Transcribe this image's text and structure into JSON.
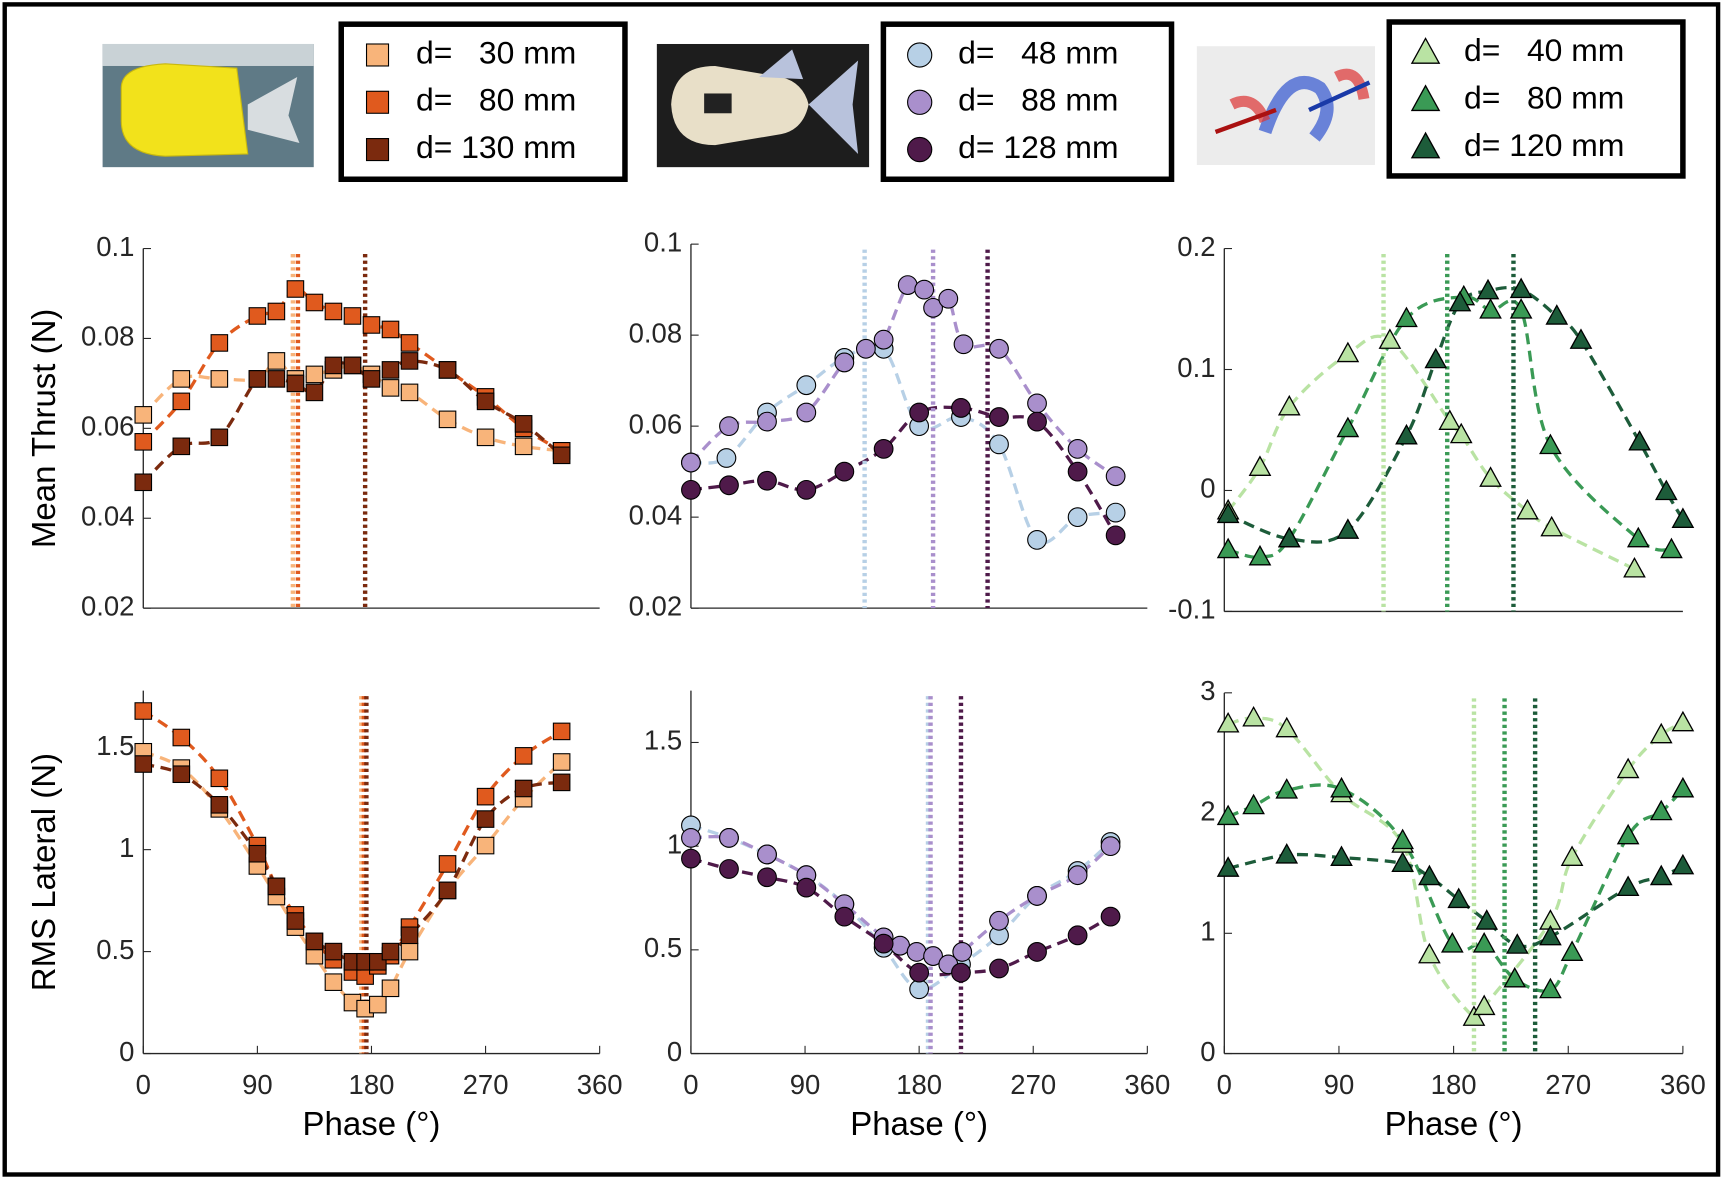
{
  "chart_data": [
    {
      "type": "scatter",
      "marker": "square",
      "xlim": [
        0,
        360
      ],
      "ylim": [
        0.02,
        0.1
      ],
      "yticks": [
        0.02,
        0.04,
        0.06,
        0.08,
        0.1
      ],
      "ylabel": "Mean Thrust (N)",
      "series": [
        {
          "name": "d=   30 mm",
          "color": "#f8b47a",
          "x": [
            0,
            30,
            60,
            90,
            105,
            120,
            135,
            150,
            165,
            180,
            195,
            210,
            240,
            270,
            300,
            330
          ],
          "values": [
            0.063,
            0.071,
            0.071,
            0.071,
            0.075,
            0.071,
            0.072,
            0.073,
            0.074,
            0.072,
            0.069,
            0.068,
            0.062,
            0.058,
            0.056,
            0.055
          ]
        },
        {
          "name": "d=   80 mm",
          "color": "#e05a1e",
          "x": [
            0,
            30,
            60,
            90,
            105,
            120,
            135,
            150,
            165,
            180,
            195,
            210,
            240,
            270,
            300,
            330
          ],
          "values": [
            0.057,
            0.066,
            0.079,
            0.085,
            0.086,
            0.091,
            0.088,
            0.086,
            0.085,
            0.083,
            0.082,
            0.079,
            0.073,
            0.067,
            0.06,
            0.055
          ]
        },
        {
          "name": "d= 130 mm",
          "color": "#7b2a0e",
          "x": [
            0,
            30,
            60,
            90,
            105,
            120,
            135,
            150,
            165,
            180,
            195,
            210,
            240,
            270,
            300,
            330
          ],
          "values": [
            0.048,
            0.056,
            0.058,
            0.071,
            0.071,
            0.07,
            0.068,
            0.074,
            0.074,
            0.071,
            0.073,
            0.075,
            0.073,
            0.066,
            0.061,
            0.054
          ]
        }
      ],
      "vlines": [
        {
          "x": 118,
          "color": "#f8b47a"
        },
        {
          "x": 122,
          "color": "#e05a1e"
        },
        {
          "x": 175,
          "color": "#7b2a0e"
        }
      ]
    },
    {
      "type": "scatter",
      "marker": "square",
      "xlim": [
        0,
        360
      ],
      "ylim": [
        0,
        1.78
      ],
      "xticks": [
        0,
        90,
        180,
        270,
        360
      ],
      "yticks": [
        0,
        0.5,
        1,
        1.5
      ],
      "xlabel": "Phase (°)",
      "ylabel": "RMS Lateral (N)",
      "series": [
        {
          "color": "#f8b47a",
          "x": [
            0,
            30,
            60,
            90,
            105,
            120,
            135,
            150,
            165,
            175,
            185,
            195,
            210,
            240,
            270,
            300,
            330
          ],
          "values": [
            1.48,
            1.4,
            1.2,
            0.92,
            0.77,
            0.62,
            0.48,
            0.35,
            0.25,
            0.22,
            0.24,
            0.32,
            0.5,
            0.8,
            1.02,
            1.25,
            1.43
          ]
        },
        {
          "color": "#e05a1e",
          "x": [
            0,
            30,
            60,
            90,
            105,
            120,
            135,
            150,
            165,
            175,
            185,
            195,
            210,
            240,
            270,
            300,
            330
          ],
          "values": [
            1.68,
            1.55,
            1.35,
            1.02,
            0.82,
            0.68,
            0.55,
            0.46,
            0.4,
            0.38,
            0.43,
            0.48,
            0.62,
            0.93,
            1.26,
            1.46,
            1.58
          ]
        },
        {
          "color": "#7b2a0e",
          "x": [
            0,
            30,
            60,
            90,
            105,
            120,
            135,
            150,
            165,
            175,
            185,
            195,
            210,
            240,
            270,
            300,
            330
          ],
          "values": [
            1.42,
            1.37,
            1.22,
            0.98,
            0.82,
            0.65,
            0.55,
            0.5,
            0.45,
            0.45,
            0.45,
            0.5,
            0.58,
            0.8,
            1.15,
            1.3,
            1.33
          ]
        }
      ],
      "vlines": [
        {
          "x": 172,
          "color": "#f8b47a"
        },
        {
          "x": 174,
          "color": "#e05a1e"
        },
        {
          "x": 176,
          "color": "#7b2a0e"
        }
      ]
    },
    {
      "type": "scatter",
      "marker": "circle",
      "xlim": [
        0,
        360
      ],
      "ylim": [
        0.02,
        0.1
      ],
      "yticks": [
        0.02,
        0.04,
        0.06,
        0.08,
        0.1
      ],
      "series": [
        {
          "name": "d=   48 mm",
          "color": "#b7d0e6",
          "x": [
            0,
            28,
            60,
            91,
            121,
            152,
            180,
            213,
            243,
            273,
            305,
            335
          ],
          "values": [
            0.052,
            0.053,
            0.063,
            0.069,
            0.075,
            0.077,
            0.06,
            0.062,
            0.056,
            0.035,
            0.04,
            0.041
          ]
        },
        {
          "name": "d=   88 mm",
          "color": "#a98fcc",
          "x": [
            0,
            30,
            60,
            91,
            121,
            138,
            152,
            171,
            184,
            191,
            203,
            215,
            243,
            273,
            305,
            335
          ],
          "values": [
            0.052,
            0.06,
            0.061,
            0.063,
            0.074,
            0.077,
            0.079,
            0.091,
            0.09,
            0.086,
            0.088,
            0.078,
            0.077,
            0.065,
            0.055,
            0.049
          ]
        },
        {
          "name": "d= 128 mm",
          "color": "#4f1a4a",
          "x": [
            0,
            30,
            60,
            91,
            121,
            152,
            180,
            213,
            243,
            273,
            305,
            335
          ],
          "values": [
            0.046,
            0.047,
            0.048,
            0.046,
            0.05,
            0.055,
            0.063,
            0.064,
            0.062,
            0.061,
            0.05,
            0.036
          ]
        }
      ],
      "vlines": [
        {
          "x": 137,
          "color": "#b7d0e6"
        },
        {
          "x": 191,
          "color": "#a98fcc"
        },
        {
          "x": 234,
          "color": "#4f1a4a"
        }
      ]
    },
    {
      "type": "scatter",
      "marker": "circle",
      "xlim": [
        0,
        360
      ],
      "ylim": [
        0,
        1.75
      ],
      "xticks": [
        0,
        90,
        180,
        270,
        360
      ],
      "yticks": [
        0,
        0.5,
        1,
        1.5
      ],
      "xlabel": "Phase (°)",
      "series": [
        {
          "color": "#b7d0e6",
          "x": [
            0,
            30,
            60,
            91,
            121,
            152,
            180,
            213,
            243,
            273,
            305,
            331
          ],
          "values": [
            1.1,
            1.04,
            0.96,
            0.86,
            0.72,
            0.51,
            0.31,
            0.43,
            0.57,
            0.76,
            0.88,
            1.02
          ]
        },
        {
          "color": "#a98fcc",
          "x": [
            0,
            30,
            60,
            91,
            121,
            152,
            165,
            178,
            191,
            203,
            214,
            243,
            273,
            305,
            331
          ],
          "values": [
            1.04,
            1.04,
            0.96,
            0.86,
            0.72,
            0.56,
            0.52,
            0.49,
            0.47,
            0.43,
            0.49,
            0.64,
            0.76,
            0.86,
            1.0
          ]
        },
        {
          "color": "#4f1a4a",
          "x": [
            0,
            30,
            60,
            91,
            121,
            152,
            180,
            213,
            243,
            273,
            305,
            331
          ],
          "values": [
            0.94,
            0.89,
            0.85,
            0.8,
            0.66,
            0.53,
            0.39,
            0.39,
            0.41,
            0.49,
            0.57,
            0.66
          ]
        }
      ],
      "vlines": [
        {
          "x": 187,
          "color": "#b7d0e6"
        },
        {
          "x": 189,
          "color": "#a98fcc"
        },
        {
          "x": 213,
          "color": "#4f1a4a"
        }
      ]
    },
    {
      "type": "scatter",
      "marker": "triangle",
      "xlim": [
        0,
        360
      ],
      "ylim": [
        -0.1,
        0.2
      ],
      "yticks": [
        -0.1,
        0,
        0.1,
        0.2
      ],
      "series": [
        {
          "name": "d=   40 mm",
          "color": "#b9e3a3",
          "x": [
            3,
            28,
            51,
            97,
            130,
            177,
            186,
            209,
            238,
            257,
            322
          ],
          "values": [
            -0.017,
            0.019,
            0.069,
            0.113,
            0.124,
            0.057,
            0.046,
            0.01,
            -0.017,
            -0.031,
            -0.065
          ]
        },
        {
          "name": "d=   80 mm",
          "color": "#3a9a55",
          "x": [
            3,
            28,
            51,
            97,
            143,
            188,
            209,
            233,
            256,
            325,
            351
          ],
          "values": [
            -0.049,
            -0.055,
            -0.04,
            0.051,
            0.142,
            0.16,
            0.149,
            0.149,
            0.037,
            -0.04,
            -0.049
          ]
        },
        {
          "name": "d= 120 mm",
          "color": "#1d5c3a",
          "x": [
            3,
            51,
            97,
            143,
            166,
            185,
            207,
            233,
            261,
            280,
            326,
            347,
            360
          ],
          "values": [
            -0.02,
            -0.04,
            -0.033,
            0.045,
            0.108,
            0.155,
            0.165,
            0.166,
            0.144,
            0.124,
            0.04,
            -0.001,
            -0.024
          ]
        }
      ],
      "vlines": [
        {
          "x": 125,
          "color": "#b9e3a3"
        },
        {
          "x": 175,
          "color": "#3a9a55"
        },
        {
          "x": 227,
          "color": "#1d5c3a"
        }
      ]
    },
    {
      "type": "scatter",
      "marker": "triangle",
      "xlim": [
        0,
        360
      ],
      "ylim": [
        0,
        3
      ],
      "xticks": [
        0,
        90,
        180,
        270,
        360
      ],
      "yticks": [
        0,
        1,
        2,
        3
      ],
      "xlabel": "Phase (°)",
      "series": [
        {
          "color": "#b9e3a3",
          "x": [
            3,
            23,
            49,
            92,
            140,
            161,
            196,
            204,
            256,
            273,
            317,
            343,
            360
          ],
          "values": [
            2.74,
            2.79,
            2.7,
            2.16,
            1.74,
            0.82,
            0.3,
            0.39,
            1.1,
            1.63,
            2.36,
            2.65,
            2.75
          ]
        },
        {
          "color": "#3a9a55",
          "x": [
            3,
            23,
            49,
            92,
            140,
            179,
            204,
            228,
            256,
            273,
            317,
            343,
            360
          ],
          "values": [
            1.97,
            2.06,
            2.19,
            2.2,
            1.77,
            0.91,
            0.91,
            0.62,
            0.53,
            0.84,
            1.81,
            2.01,
            2.2
          ]
        },
        {
          "color": "#1d5c3a",
          "x": [
            3,
            49,
            92,
            140,
            161,
            184,
            206,
            230,
            256,
            317,
            343,
            360
          ],
          "values": [
            1.54,
            1.65,
            1.63,
            1.58,
            1.47,
            1.28,
            1.1,
            0.9,
            0.97,
            1.38,
            1.47,
            1.56
          ]
        }
      ],
      "vlines": [
        {
          "x": 196,
          "color": "#b9e3a3"
        },
        {
          "x": 220,
          "color": "#3a9a55"
        },
        {
          "x": 244,
          "color": "#1d5c3a"
        }
      ]
    }
  ]
}
